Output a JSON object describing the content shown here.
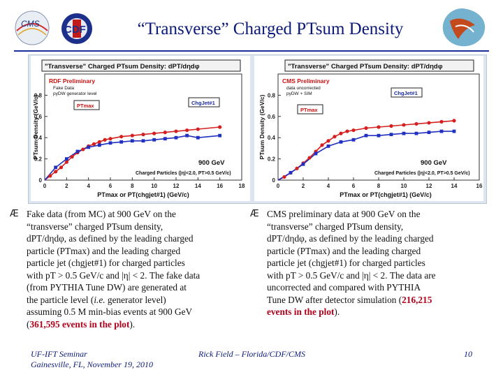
{
  "header": {
    "title": "“Transverse” Charged PTsum Density",
    "logo_left_text": "CMS",
    "logo_mid_text": "CDF"
  },
  "left_plot": {
    "title": "\"Transverse\" Charged PTsum Density: dPT/dηdφ",
    "preliminary_label": "RDF Preliminary",
    "sub_label_1": "Fake Data",
    "sub_label_2": "pyDW generator level",
    "ptmax_box": "PTmax",
    "chgjet_box": "ChgJet#1",
    "energy_label": "900 GeV",
    "cuts_label": "Charged Particles (|η|<2.0, PT>0.5 GeV/c)",
    "xlabel": "PTmax or PT(chgjet#1)  (GeV/c)",
    "ylabel": "PTsum Density (GeV/c)"
  },
  "right_plot": {
    "title": "\"Transverse\" Charged PTsum Density: dPT/dηdφ",
    "preliminary_label": "CMS Preliminary",
    "sub_label_1": "data uncorrected",
    "sub_label_2": "pyDW + SIM",
    "ptmax_box": "PTmax",
    "chgjet_box": "ChgJet#1",
    "energy_label": "900 GeV",
    "cuts_label": "Charged Particles (|η|<2.0, PT>0.5 GeV/c)",
    "xlabel": "PTmax or PT(chgjet#1)  (GeV/c)",
    "ylabel": "PTsum Density (GeV/c)"
  },
  "chart_data": [
    {
      "type": "scatter",
      "title": "\"Transverse\" Charged PTsum Density: dPT/dηdφ",
      "xlabel": "PTmax or PT(chgjet#1)  (GeV/c)",
      "ylabel": "PTsum Density (GeV/c)",
      "xlim": [
        0,
        18
      ],
      "ylim": [
        0,
        1.0
      ],
      "xticks": [
        "0",
        "2",
        "4",
        "6",
        "8",
        "10",
        "12",
        "14",
        "16",
        "18"
      ],
      "yticks": [
        "0",
        "0.2",
        "0.4",
        "0.6",
        "0.8"
      ],
      "series": [
        {
          "name": "PTmax",
          "color": "#d62020",
          "x": [
            0.5,
            1.0,
            1.5,
            2.0,
            2.5,
            3.0,
            3.5,
            4.0,
            4.5,
            5.0,
            5.5,
            6.0,
            7.0,
            8.0,
            9.0,
            10.0,
            11.0,
            12.0,
            13.0,
            14.0,
            16.0
          ],
          "y": [
            0.04,
            0.08,
            0.12,
            0.17,
            0.22,
            0.26,
            0.29,
            0.32,
            0.34,
            0.36,
            0.38,
            0.39,
            0.41,
            0.42,
            0.43,
            0.44,
            0.45,
            0.46,
            0.47,
            0.48,
            0.5
          ]
        },
        {
          "name": "ChgJet#1",
          "color": "#2030c0",
          "x": [
            1.0,
            2.0,
            3.0,
            4.0,
            5.0,
            6.0,
            7.0,
            8.0,
            9.0,
            10.0,
            11.0,
            12.0,
            13.0,
            14.0,
            16.0
          ],
          "y": [
            0.12,
            0.2,
            0.27,
            0.31,
            0.33,
            0.35,
            0.36,
            0.37,
            0.37,
            0.38,
            0.39,
            0.4,
            0.42,
            0.4,
            0.42
          ]
        }
      ]
    },
    {
      "type": "scatter",
      "title": "\"Transverse\" Charged PTsum Density: dPT/dηdφ",
      "xlabel": "PTmax or PT(chgjet#1)  (GeV/c)",
      "ylabel": "PTsum Density (GeV/c)",
      "xlim": [
        0,
        16
      ],
      "ylim": [
        0,
        1.0
      ],
      "xticks": [
        "0",
        "2",
        "4",
        "6",
        "8",
        "10",
        "12",
        "14",
        "16"
      ],
      "yticks": [
        "0",
        "0.2",
        "0.4",
        "0.6",
        "0.8"
      ],
      "series": [
        {
          "name": "PTmax",
          "color": "#d62020",
          "x": [
            0.5,
            1.0,
            1.5,
            2.0,
            2.5,
            3.0,
            3.5,
            4.0,
            4.5,
            5.0,
            5.5,
            6.0,
            7.0,
            8.0,
            9.0,
            10.0,
            11.0,
            12.0,
            13.0,
            14.0
          ],
          "y": [
            0.03,
            0.07,
            0.11,
            0.16,
            0.21,
            0.27,
            0.33,
            0.37,
            0.41,
            0.44,
            0.46,
            0.47,
            0.49,
            0.5,
            0.51,
            0.52,
            0.53,
            0.54,
            0.55,
            0.56
          ]
        },
        {
          "name": "ChgJet#1",
          "color": "#2030c0",
          "x": [
            1.0,
            2.0,
            3.0,
            4.0,
            5.0,
            6.0,
            7.0,
            8.0,
            9.0,
            10.0,
            11.0,
            12.0,
            13.0,
            14.0
          ],
          "y": [
            0.07,
            0.15,
            0.25,
            0.32,
            0.36,
            0.38,
            0.42,
            0.42,
            0.43,
            0.44,
            0.44,
            0.45,
            0.46,
            0.46
          ]
        }
      ]
    }
  ],
  "left_text": {
    "bullet": "Æ",
    "line1": "Fake data (from MC) at 900 GeV on the",
    "line2": "“transverse” charged PTsum density,",
    "line3": "dPT/dηdφ, as defined by the leading charged",
    "line4": "particle (PTmax) and the leading charged",
    "line5": "particle jet (chgjet#1) for charged particles",
    "line6": "with pT > 0.5 GeV/c and |η| < 2.  The fake data",
    "line7": "(from PYTHIA Tune DW) are generated at",
    "line8a": "the particle level (",
    "line8b": "i.e.",
    "line8c": " generator level)",
    "line9": "assuming 0.5 M min-bias events at 900 GeV",
    "line10a": "(",
    "line10b": "361,595 events in the plot",
    "line10c": ")."
  },
  "right_text": {
    "bullet": "Æ",
    "line1": "CMS preliminary data at 900 GeV on the",
    "line2": "“transverse” charged PTsum density,",
    "line3": "dPT/dηdφ, as defined by the leading charged",
    "line4": "particle (PTmax) and the leading charged",
    "line5": "particle jet (chgjet#1) for charged particles",
    "line6": "with pT > 0.5 GeV/c and |η| < 2.  The data are",
    "line7": "uncorrected and compared with PYTHIA",
    "line8a": "Tune DW after detector simulation (",
    "line8b": "216,215",
    "line9": "events in the plot",
    "line9c": ")."
  },
  "footer": {
    "left_line1": "UF-IFT Seminar",
    "left_line2": "Gainesville, FL,  November 19, 2010",
    "center": "Rick Field – Florida/CDF/CMS",
    "page": "10"
  }
}
